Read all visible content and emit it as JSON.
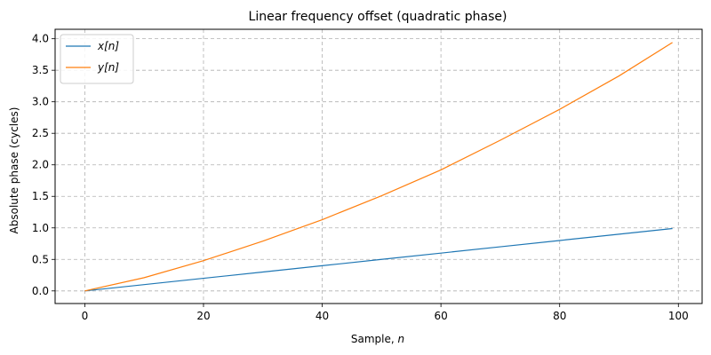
{
  "chart_data": {
    "type": "line",
    "title": "Linear frequency offset (quadratic phase)",
    "xlabel": "Sample, n",
    "ylabel": "Absolute phase (cycles)",
    "xlim": [
      -5,
      104
    ],
    "ylim": [
      -0.2,
      4.15
    ],
    "xticks": [
      0,
      20,
      40,
      60,
      80,
      100
    ],
    "yticks": [
      0.0,
      0.5,
      1.0,
      1.5,
      2.0,
      2.5,
      3.0,
      3.5,
      4.0
    ],
    "xtick_labels": [
      "0",
      "20",
      "40",
      "60",
      "80",
      "100"
    ],
    "ytick_labels": [
      "0.0",
      "0.5",
      "1.0",
      "1.5",
      "2.0",
      "2.5",
      "3.0",
      "3.5",
      "4.0"
    ],
    "grid": true,
    "legend_position": "top-left",
    "x": [
      0,
      10,
      20,
      30,
      40,
      50,
      60,
      70,
      80,
      90,
      99
    ],
    "series": [
      {
        "name": "x[n]",
        "color": "#1f77b4",
        "values": [
          0.0,
          0.1,
          0.2,
          0.3,
          0.4,
          0.5,
          0.6,
          0.7,
          0.8,
          0.9,
          0.99
        ]
      },
      {
        "name": "y[n]",
        "color": "#ff7f0e",
        "values": [
          0.0,
          0.21,
          0.48,
          0.79,
          1.13,
          1.51,
          1.92,
          2.39,
          2.88,
          3.41,
          3.94
        ]
      }
    ]
  }
}
